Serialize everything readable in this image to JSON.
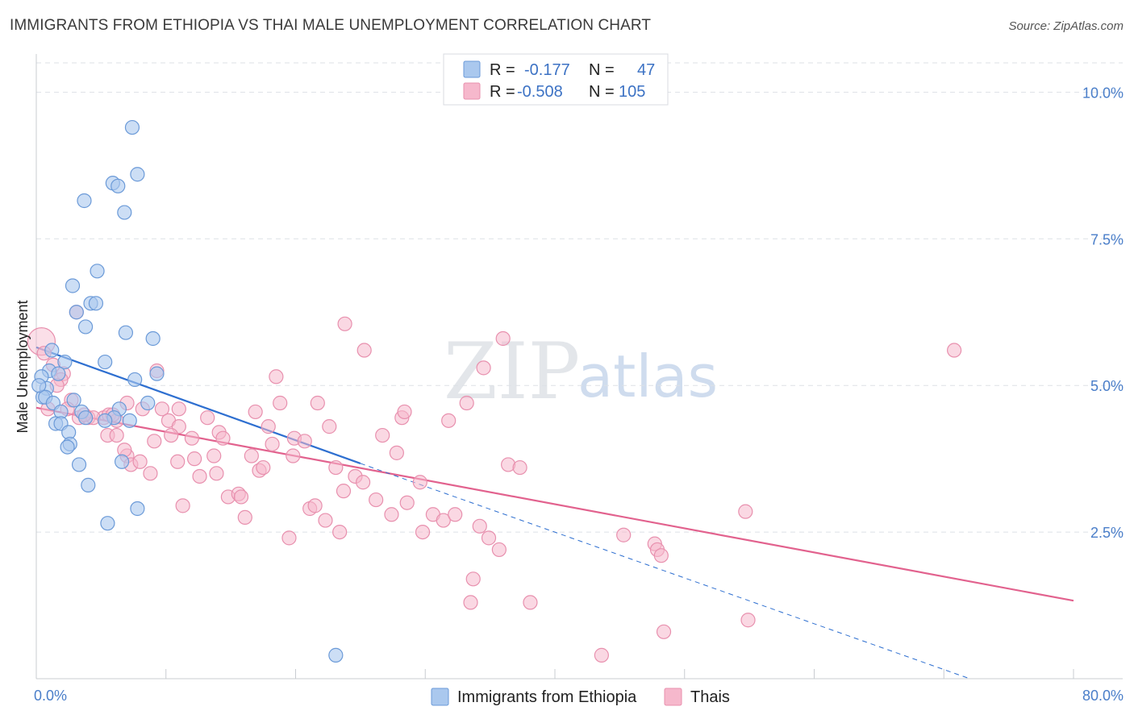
{
  "title": "IMMIGRANTS FROM ETHIOPIA VS THAI MALE UNEMPLOYMENT CORRELATION CHART",
  "source": "Source: ZipAtlas.com",
  "watermark": {
    "part1": "ZIP",
    "part2": "atlas"
  },
  "colors": {
    "blue_fill": "#aac8ee",
    "blue_stroke": "#6b9ad8",
    "blue_line": "#2e6fd0",
    "pink_fill": "#f6b8cc",
    "pink_stroke": "#e890ae",
    "pink_line": "#e2628e",
    "grid": "#dde1e6",
    "tick_text": "#4a7ec9"
  },
  "legend": {
    "row1": {
      "r_label": "R =",
      "r_value": "-0.177",
      "n_label": "N =",
      "n_value": "47"
    },
    "row2": {
      "r_label": "R =",
      "r_value": "-0.508",
      "n_label": "N =",
      "n_value": "105"
    }
  },
  "bottom_legend": {
    "series1": "Immigrants from Ethiopia",
    "series2": "Thais"
  },
  "chart_data": {
    "type": "scatter",
    "title": "IMMIGRANTS FROM ETHIOPIA VS THAI MALE UNEMPLOYMENT CORRELATION CHART",
    "xlabel": "",
    "ylabel": "Male Unemployment",
    "xlim": [
      0,
      80
    ],
    "ylim": [
      0,
      10.5
    ],
    "x_tick_labels": [
      "0.0%",
      "80.0%"
    ],
    "y_tick_labels": [
      "2.5%",
      "5.0%",
      "7.5%",
      "10.0%"
    ],
    "y_ticks": [
      2.5,
      5.0,
      7.5,
      10.0
    ],
    "grid": true,
    "series": [
      {
        "name": "Immigrants from Ethiopia",
        "points": [
          [
            7.4,
            9.4
          ],
          [
            7.8,
            8.6
          ],
          [
            5.9,
            8.45
          ],
          [
            6.3,
            8.4
          ],
          [
            3.7,
            8.15
          ],
          [
            6.8,
            7.95
          ],
          [
            4.7,
            6.95
          ],
          [
            2.8,
            6.7
          ],
          [
            4.2,
            6.4
          ],
          [
            4.6,
            6.4
          ],
          [
            3.1,
            6.25
          ],
          [
            3.8,
            6.0
          ],
          [
            6.9,
            5.9
          ],
          [
            9.0,
            5.8
          ],
          [
            1.2,
            5.6
          ],
          [
            2.2,
            5.4
          ],
          [
            5.3,
            5.4
          ],
          [
            1.0,
            5.25
          ],
          [
            1.7,
            5.2
          ],
          [
            0.4,
            5.15
          ],
          [
            9.3,
            5.2
          ],
          [
            7.6,
            5.1
          ],
          [
            0.8,
            4.95
          ],
          [
            0.5,
            4.8
          ],
          [
            0.7,
            4.8
          ],
          [
            1.3,
            4.7
          ],
          [
            2.9,
            4.75
          ],
          [
            8.6,
            4.7
          ],
          [
            6.4,
            4.6
          ],
          [
            1.9,
            4.55
          ],
          [
            3.5,
            4.55
          ],
          [
            3.8,
            4.45
          ],
          [
            6.0,
            4.45
          ],
          [
            5.3,
            4.4
          ],
          [
            7.2,
            4.4
          ],
          [
            1.5,
            4.35
          ],
          [
            1.9,
            4.35
          ],
          [
            2.5,
            4.2
          ],
          [
            2.6,
            4.0
          ],
          [
            2.4,
            3.95
          ],
          [
            6.6,
            3.7
          ],
          [
            3.3,
            3.65
          ],
          [
            4.0,
            3.3
          ],
          [
            7.8,
            2.9
          ],
          [
            5.5,
            2.65
          ],
          [
            23.1,
            0.4
          ],
          [
            0.2,
            5.0
          ]
        ]
      },
      {
        "name": "Thais",
        "points": [
          [
            0.4,
            5.75
          ],
          [
            0.6,
            5.55
          ],
          [
            1.3,
            5.35
          ],
          [
            2.1,
            5.2
          ],
          [
            1.9,
            5.1
          ],
          [
            3.1,
            6.25
          ],
          [
            9.3,
            5.25
          ],
          [
            18.5,
            5.15
          ],
          [
            23.8,
            6.05
          ],
          [
            25.3,
            5.6
          ],
          [
            36.0,
            5.8
          ],
          [
            34.5,
            5.3
          ],
          [
            70.8,
            5.6
          ],
          [
            2.7,
            4.75
          ],
          [
            2.4,
            4.6
          ],
          [
            5.2,
            4.45
          ],
          [
            5.6,
            4.5
          ],
          [
            4.0,
            4.45
          ],
          [
            3.3,
            4.45
          ],
          [
            6.2,
            4.4
          ],
          [
            7.0,
            4.7
          ],
          [
            8.2,
            4.6
          ],
          [
            9.7,
            4.6
          ],
          [
            10.2,
            4.4
          ],
          [
            11.0,
            4.3
          ],
          [
            13.2,
            4.45
          ],
          [
            16.9,
            4.55
          ],
          [
            18.8,
            4.7
          ],
          [
            21.7,
            4.7
          ],
          [
            28.2,
            4.45
          ],
          [
            28.4,
            4.55
          ],
          [
            31.8,
            4.4
          ],
          [
            33.2,
            4.7
          ],
          [
            5.5,
            4.15
          ],
          [
            6.2,
            4.15
          ],
          [
            9.1,
            4.05
          ],
          [
            10.4,
            4.15
          ],
          [
            12.0,
            4.1
          ],
          [
            14.1,
            4.2
          ],
          [
            14.4,
            4.1
          ],
          [
            17.9,
            4.3
          ],
          [
            18.2,
            4.0
          ],
          [
            19.9,
            4.1
          ],
          [
            20.7,
            4.05
          ],
          [
            22.6,
            4.3
          ],
          [
            26.7,
            4.15
          ],
          [
            7.0,
            3.8
          ],
          [
            7.3,
            3.65
          ],
          [
            8.0,
            3.7
          ],
          [
            8.8,
            3.5
          ],
          [
            10.9,
            3.7
          ],
          [
            12.2,
            3.75
          ],
          [
            13.7,
            3.8
          ],
          [
            16.6,
            3.8
          ],
          [
            17.2,
            3.55
          ],
          [
            19.8,
            3.8
          ],
          [
            27.8,
            3.85
          ],
          [
            12.6,
            3.45
          ],
          [
            13.9,
            3.5
          ],
          [
            17.5,
            3.6
          ],
          [
            23.1,
            3.6
          ],
          [
            24.6,
            3.45
          ],
          [
            25.2,
            3.35
          ],
          [
            29.6,
            3.35
          ],
          [
            36.4,
            3.65
          ],
          [
            37.3,
            3.6
          ],
          [
            14.8,
            3.1
          ],
          [
            15.6,
            3.15
          ],
          [
            15.8,
            3.1
          ],
          [
            23.7,
            3.2
          ],
          [
            26.2,
            3.05
          ],
          [
            28.6,
            3.0
          ],
          [
            11.3,
            2.95
          ],
          [
            21.1,
            2.9
          ],
          [
            21.5,
            2.95
          ],
          [
            16.1,
            2.75
          ],
          [
            22.3,
            2.7
          ],
          [
            27.4,
            2.8
          ],
          [
            30.6,
            2.8
          ],
          [
            31.4,
            2.7
          ],
          [
            32.3,
            2.8
          ],
          [
            34.2,
            2.6
          ],
          [
            54.7,
            2.85
          ],
          [
            23.4,
            2.5
          ],
          [
            19.5,
            2.4
          ],
          [
            29.8,
            2.5
          ],
          [
            34.9,
            2.4
          ],
          [
            35.7,
            2.2
          ],
          [
            45.3,
            2.45
          ],
          [
            47.7,
            2.3
          ],
          [
            47.9,
            2.2
          ],
          [
            48.2,
            2.1
          ],
          [
            33.7,
            1.7
          ],
          [
            33.5,
            1.3
          ],
          [
            38.1,
            1.3
          ],
          [
            48.4,
            0.8
          ],
          [
            54.9,
            1.0
          ],
          [
            43.6,
            0.4
          ],
          [
            1.6,
            5.0
          ],
          [
            0.9,
            4.6
          ],
          [
            4.4,
            4.45
          ],
          [
            5.9,
            4.5
          ],
          [
            11.0,
            4.6
          ],
          [
            3.7,
            4.5
          ],
          [
            6.8,
            3.9
          ]
        ]
      }
    ],
    "trend_lines": [
      {
        "series": "Immigrants from Ethiopia",
        "x_start": 0.0,
        "y_start": 5.65,
        "x_end": 25.0,
        "y_end": 3.67,
        "dashed_extension_to": [
          72.0,
          0.0
        ]
      },
      {
        "series": "Thais",
        "x_start": 0.0,
        "y_start": 4.62,
        "x_end": 80.0,
        "y_end": 1.33
      }
    ]
  }
}
